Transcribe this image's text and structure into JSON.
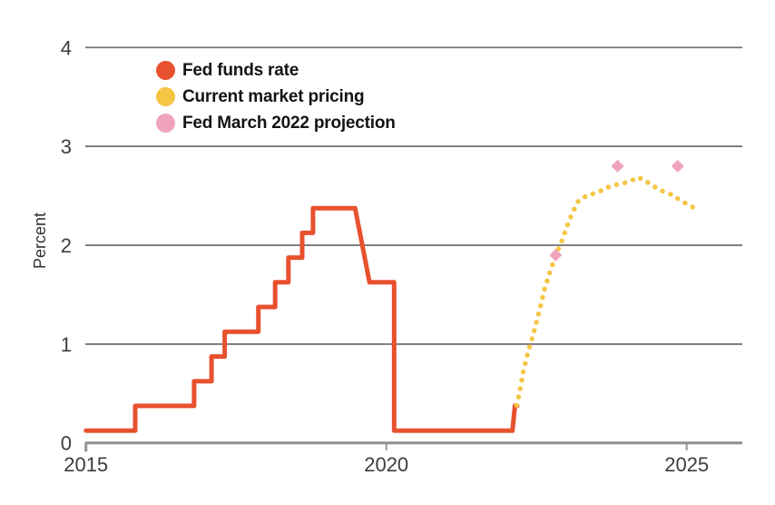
{
  "chart_data": {
    "type": "line",
    "title": "",
    "xlabel": "",
    "ylabel": "Percent",
    "xlim": [
      2015,
      2025.9
    ],
    "ylim": [
      0,
      4
    ],
    "x_ticks": [
      2015,
      2020,
      2025
    ],
    "y_ticks": [
      0,
      1,
      2,
      3,
      4
    ],
    "grid": "horizontal-gridlines",
    "legend_position": "top-left-inside",
    "series": [
      {
        "name": "Fed funds rate",
        "style": "solid-step-line",
        "color": "#e8512e",
        "points": [
          [
            2015.0,
            0.125
          ],
          [
            2015.82,
            0.125
          ],
          [
            2015.82,
            0.375
          ],
          [
            2016.8,
            0.375
          ],
          [
            2016.8,
            0.625
          ],
          [
            2017.09,
            0.625
          ],
          [
            2017.09,
            0.875
          ],
          [
            2017.31,
            0.875
          ],
          [
            2017.31,
            1.125
          ],
          [
            2017.87,
            1.125
          ],
          [
            2017.87,
            1.375
          ],
          [
            2018.15,
            1.375
          ],
          [
            2018.15,
            1.625
          ],
          [
            2018.37,
            1.625
          ],
          [
            2018.37,
            1.875
          ],
          [
            2018.6,
            1.875
          ],
          [
            2018.6,
            2.125
          ],
          [
            2018.78,
            2.125
          ],
          [
            2018.78,
            2.375
          ],
          [
            2019.48,
            2.375
          ],
          [
            2019.72,
            1.625
          ],
          [
            2020.13,
            1.625
          ],
          [
            2020.13,
            0.125
          ],
          [
            2022.1,
            0.125
          ],
          [
            2022.14,
            0.375
          ],
          [
            2022.18,
            0.375
          ]
        ]
      },
      {
        "name": "Current market pricing",
        "style": "dotted-line",
        "color": "#f5c544",
        "points": [
          [
            2022.17,
            0.38
          ],
          [
            2022.22,
            0.52
          ],
          [
            2022.28,
            0.72
          ],
          [
            2022.35,
            0.9
          ],
          [
            2022.42,
            1.04
          ],
          [
            2022.49,
            1.2
          ],
          [
            2022.57,
            1.39
          ],
          [
            2022.64,
            1.57
          ],
          [
            2022.72,
            1.72
          ],
          [
            2022.82,
            1.9
          ],
          [
            2022.92,
            2.04
          ],
          [
            2023.0,
            2.18
          ],
          [
            2023.1,
            2.33
          ],
          [
            2023.2,
            2.45
          ],
          [
            2023.36,
            2.51
          ],
          [
            2023.51,
            2.53
          ],
          [
            2023.66,
            2.58
          ],
          [
            2023.81,
            2.61
          ],
          [
            2023.96,
            2.63
          ],
          [
            2024.1,
            2.66
          ],
          [
            2024.19,
            2.69
          ],
          [
            2024.34,
            2.64
          ],
          [
            2024.47,
            2.59
          ],
          [
            2024.62,
            2.54
          ],
          [
            2024.76,
            2.51
          ],
          [
            2024.9,
            2.45
          ],
          [
            2025.03,
            2.41
          ],
          [
            2025.17,
            2.36
          ]
        ]
      },
      {
        "name": "Fed March 2022 projection",
        "style": "diamond-markers",
        "color": "#f0a3bc",
        "points": [
          [
            2022.82,
            1.9
          ],
          [
            2023.85,
            2.8
          ],
          [
            2024.85,
            2.8
          ]
        ]
      }
    ]
  },
  "legend": {
    "items": [
      {
        "label": "Fed funds rate",
        "color": "#e8512e"
      },
      {
        "label": "Current market pricing",
        "color": "#f5c544"
      },
      {
        "label": "Fed March 2022 projection",
        "color": "#f0a3bc"
      }
    ]
  },
  "axes": {
    "y_tick_labels": [
      "0",
      "1",
      "2",
      "3",
      "4"
    ],
    "x_tick_labels": [
      "2015",
      "2020",
      "2025"
    ],
    "y_axis_title": "Percent"
  },
  "colors": {
    "gridline": "#6e6e6e",
    "axis": "#939393",
    "tick_text": "#3d3d3d",
    "legend_text": "#141414",
    "background": "#ffffff"
  }
}
